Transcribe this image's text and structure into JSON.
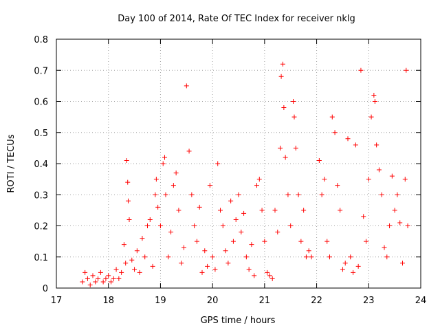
{
  "chart_data": {
    "type": "scatter",
    "title": "Day 100 of 2014, Rate Of TEC Index for receiver nklg",
    "xlabel": "GPS time / hours",
    "ylabel": "ROTI / TECUs",
    "xlim": [
      17,
      24
    ],
    "ylim": [
      0,
      0.8
    ],
    "xticks": [
      "17",
      "18",
      "19",
      "20",
      "21",
      "22",
      "23",
      "24"
    ],
    "yticks": [
      "0",
      "0.1",
      "0.2",
      "0.3",
      "0.4",
      "0.5",
      "0.6",
      "0.7",
      "0.8"
    ],
    "grid": true,
    "marker": "+",
    "color": "#ff0000",
    "series": [
      {
        "name": "ROTI",
        "points": [
          [
            17.5,
            0.02
          ],
          [
            17.55,
            0.05
          ],
          [
            17.6,
            0.03
          ],
          [
            17.65,
            0.01
          ],
          [
            17.7,
            0.04
          ],
          [
            17.75,
            0.02
          ],
          [
            17.8,
            0.03
          ],
          [
            17.85,
            0.05
          ],
          [
            17.9,
            0.02
          ],
          [
            17.95,
            0.03
          ],
          [
            18.0,
            0.04
          ],
          [
            18.05,
            0.02
          ],
          [
            18.1,
            0.03
          ],
          [
            18.15,
            0.06
          ],
          [
            18.2,
            0.03
          ],
          [
            18.25,
            0.05
          ],
          [
            18.3,
            0.14
          ],
          [
            18.33,
            0.08
          ],
          [
            18.35,
            0.41
          ],
          [
            18.37,
            0.34
          ],
          [
            18.38,
            0.28
          ],
          [
            18.4,
            0.22
          ],
          [
            18.45,
            0.09
          ],
          [
            18.5,
            0.06
          ],
          [
            18.55,
            0.12
          ],
          [
            18.6,
            0.05
          ],
          [
            18.65,
            0.16
          ],
          [
            18.7,
            0.1
          ],
          [
            18.75,
            0.2
          ],
          [
            18.8,
            0.22
          ],
          [
            18.85,
            0.07
          ],
          [
            18.9,
            0.3
          ],
          [
            18.92,
            0.35
          ],
          [
            18.95,
            0.26
          ],
          [
            19.0,
            0.2
          ],
          [
            19.05,
            0.4
          ],
          [
            19.08,
            0.42
          ],
          [
            19.1,
            0.3
          ],
          [
            19.15,
            0.1
          ],
          [
            19.2,
            0.18
          ],
          [
            19.25,
            0.33
          ],
          [
            19.3,
            0.37
          ],
          [
            19.35,
            0.25
          ],
          [
            19.4,
            0.08
          ],
          [
            19.45,
            0.13
          ],
          [
            19.5,
            0.65
          ],
          [
            19.55,
            0.44
          ],
          [
            19.6,
            0.3
          ],
          [
            19.65,
            0.2
          ],
          [
            19.7,
            0.15
          ],
          [
            19.75,
            0.26
          ],
          [
            19.8,
            0.05
          ],
          [
            19.85,
            0.12
          ],
          [
            19.9,
            0.07
          ],
          [
            19.95,
            0.33
          ],
          [
            20.0,
            0.1
          ],
          [
            20.05,
            0.06
          ],
          [
            20.1,
            0.4
          ],
          [
            20.15,
            0.25
          ],
          [
            20.2,
            0.2
          ],
          [
            20.25,
            0.12
          ],
          [
            20.3,
            0.08
          ],
          [
            20.35,
            0.28
          ],
          [
            20.4,
            0.15
          ],
          [
            20.45,
            0.22
          ],
          [
            20.5,
            0.3
          ],
          [
            20.55,
            0.18
          ],
          [
            20.6,
            0.24
          ],
          [
            20.65,
            0.1
          ],
          [
            20.7,
            0.06
          ],
          [
            20.75,
            0.14
          ],
          [
            20.8,
            0.04
          ],
          [
            20.85,
            0.33
          ],
          [
            20.9,
            0.35
          ],
          [
            20.95,
            0.25
          ],
          [
            21.0,
            0.15
          ],
          [
            21.05,
            0.05
          ],
          [
            21.1,
            0.04
          ],
          [
            21.15,
            0.03
          ],
          [
            21.2,
            0.25
          ],
          [
            21.25,
            0.18
          ],
          [
            21.3,
            0.45
          ],
          [
            21.32,
            0.68
          ],
          [
            21.35,
            0.72
          ],
          [
            21.37,
            0.58
          ],
          [
            21.4,
            0.42
          ],
          [
            21.45,
            0.3
          ],
          [
            21.5,
            0.2
          ],
          [
            21.55,
            0.6
          ],
          [
            21.57,
            0.55
          ],
          [
            21.6,
            0.45
          ],
          [
            21.65,
            0.3
          ],
          [
            21.7,
            0.15
          ],
          [
            21.75,
            0.25
          ],
          [
            21.8,
            0.1
          ],
          [
            21.85,
            0.12
          ],
          [
            21.9,
            0.1
          ],
          [
            22.05,
            0.41
          ],
          [
            22.1,
            0.3
          ],
          [
            22.15,
            0.35
          ],
          [
            22.2,
            0.15
          ],
          [
            22.25,
            0.1
          ],
          [
            22.3,
            0.55
          ],
          [
            22.35,
            0.5
          ],
          [
            22.4,
            0.33
          ],
          [
            22.45,
            0.25
          ],
          [
            22.5,
            0.06
          ],
          [
            22.55,
            0.08
          ],
          [
            22.6,
            0.48
          ],
          [
            22.65,
            0.1
          ],
          [
            22.7,
            0.05
          ],
          [
            22.75,
            0.46
          ],
          [
            22.8,
            0.07
          ],
          [
            22.85,
            0.7
          ],
          [
            22.9,
            0.23
          ],
          [
            22.95,
            0.15
          ],
          [
            23.0,
            0.35
          ],
          [
            23.05,
            0.55
          ],
          [
            23.1,
            0.62
          ],
          [
            23.12,
            0.6
          ],
          [
            23.15,
            0.46
          ],
          [
            23.2,
            0.38
          ],
          [
            23.25,
            0.3
          ],
          [
            23.3,
            0.13
          ],
          [
            23.35,
            0.1
          ],
          [
            23.4,
            0.2
          ],
          [
            23.45,
            0.36
          ],
          [
            23.5,
            0.25
          ],
          [
            23.55,
            0.3
          ],
          [
            23.6,
            0.21
          ],
          [
            23.65,
            0.08
          ],
          [
            23.7,
            0.35
          ],
          [
            23.72,
            0.7
          ],
          [
            23.75,
            0.2
          ]
        ]
      }
    ]
  }
}
